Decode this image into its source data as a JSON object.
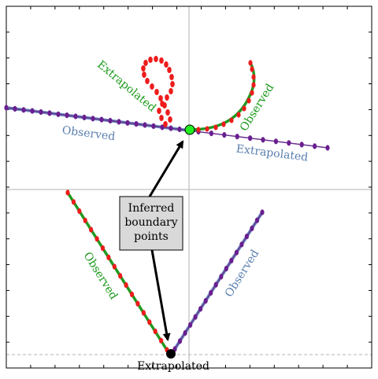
{
  "colors": {
    "frame": "#000000",
    "crosshair": "#b3b3b3",
    "observed_line": "#6a8fc0",
    "purple_line": "#6a2f8f",
    "purple_dot": "#6a1f90",
    "green_line": "#1f9a1f",
    "red_dot": "#ee1c1c",
    "green_text": "#1a9a1a",
    "blue_text": "#5a7fb0",
    "boundary_green": "#22ee22",
    "boundary_black": "#000000",
    "box_fill": "#d9d9d9"
  },
  "labels": {
    "top_left_observed": "Observed",
    "top_right_extrapolated": "Extrapolated",
    "top_loop_extrapolated": "Extrapolated",
    "top_curl_observed": "Observed",
    "bottom_left_observed": "Observed",
    "bottom_right_observed": "Observed",
    "bottom_extrapolated": "Extrapolated"
  },
  "callout": {
    "lines": [
      "Inferred",
      "boundary",
      "points"
    ]
  }
}
